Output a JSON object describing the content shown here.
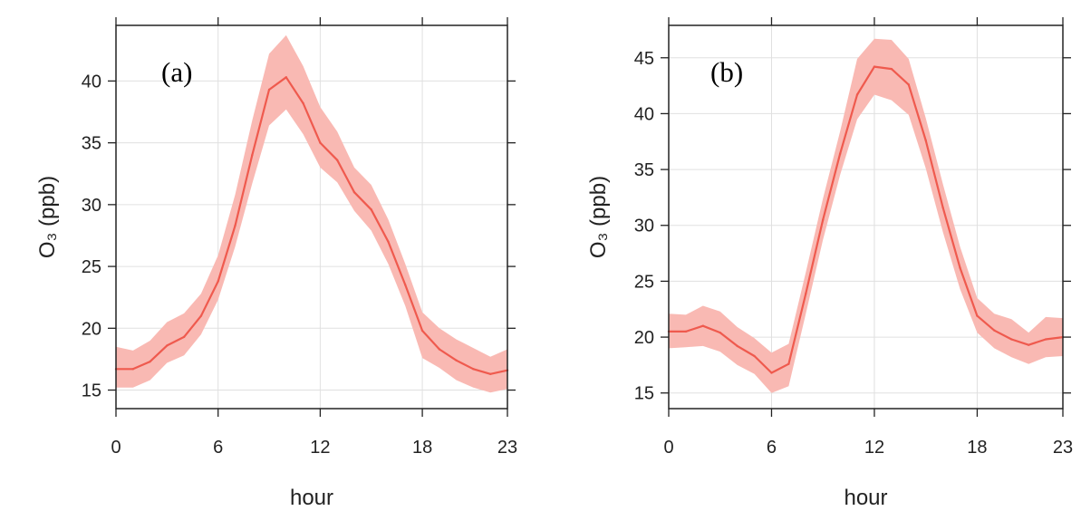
{
  "chart_data": [
    {
      "type": "line",
      "panel_label": "(a)",
      "xlabel": "hour",
      "ylabel": "O₃ (ppb)",
      "xlim": [
        0,
        23
      ],
      "ylim": [
        13.5,
        44.5
      ],
      "x_ticks": [
        0,
        6,
        12,
        18,
        23
      ],
      "y_ticks": [
        15,
        20,
        25,
        30,
        35,
        40
      ],
      "grid": true,
      "colors": {
        "line": "#ef5a4e",
        "band": "#f9b9b3",
        "grid": "#e0e0e0",
        "axis": "#222222"
      },
      "x": [
        0,
        1,
        2,
        3,
        4,
        5,
        6,
        7,
        8,
        9,
        10,
        11,
        12,
        13,
        14,
        15,
        16,
        17,
        18,
        19,
        20,
        21,
        22,
        23
      ],
      "series": [
        {
          "values": [
            16.7,
            16.7,
            17.3,
            18.6,
            19.3,
            21.0,
            23.8,
            28.3,
            34.0,
            39.3,
            40.3,
            38.2,
            35.0,
            33.6,
            31.0,
            29.6,
            27.0,
            23.5,
            19.8,
            18.3,
            17.4,
            16.7,
            16.3,
            16.6
          ],
          "lower": [
            15.2,
            15.2,
            15.8,
            17.2,
            17.8,
            19.5,
            22.3,
            26.6,
            31.7,
            36.4,
            37.7,
            35.7,
            33.0,
            31.8,
            29.5,
            27.9,
            25.2,
            21.8,
            17.6,
            16.8,
            15.8,
            15.2,
            14.8,
            15.1
          ],
          "upper": [
            18.5,
            18.2,
            19.0,
            20.5,
            21.2,
            22.8,
            25.9,
            30.8,
            36.8,
            42.2,
            43.7,
            41.2,
            37.9,
            35.9,
            33.0,
            31.6,
            28.8,
            25.2,
            21.3,
            20.0,
            19.1,
            18.4,
            17.7,
            18.3
          ]
        }
      ]
    },
    {
      "type": "line",
      "panel_label": "(b)",
      "xlabel": "hour",
      "ylabel": "O₃ (ppb)",
      "xlim": [
        0,
        23
      ],
      "ylim": [
        13.6,
        47.9
      ],
      "x_ticks": [
        0,
        6,
        12,
        18,
        23
      ],
      "y_ticks": [
        15,
        20,
        25,
        30,
        35,
        40,
        45
      ],
      "grid": true,
      "colors": {
        "line": "#ef5a4e",
        "band": "#f9b9b3",
        "grid": "#e0e0e0",
        "axis": "#222222"
      },
      "x": [
        0,
        1,
        2,
        3,
        4,
        5,
        6,
        7,
        8,
        9,
        10,
        11,
        12,
        13,
        14,
        15,
        16,
        17,
        18,
        19,
        20,
        21,
        22,
        23
      ],
      "series": [
        {
          "values": [
            20.5,
            20.5,
            21.0,
            20.4,
            19.2,
            18.3,
            16.8,
            17.6,
            23.9,
            30.5,
            36.4,
            41.7,
            44.2,
            44.0,
            42.6,
            37.6,
            31.6,
            26.2,
            21.9,
            20.6,
            19.8,
            19.3,
            19.8,
            20.0
          ],
          "lower": [
            19.0,
            19.1,
            19.2,
            18.7,
            17.5,
            16.7,
            15.0,
            15.6,
            22.1,
            28.7,
            34.5,
            39.5,
            41.7,
            41.2,
            39.9,
            35.1,
            29.4,
            24.3,
            20.4,
            19.0,
            18.2,
            17.6,
            18.2,
            18.3
          ],
          "upper": [
            22.1,
            22.0,
            22.8,
            22.3,
            20.9,
            19.9,
            18.6,
            19.4,
            25.8,
            32.4,
            38.4,
            44.9,
            46.7,
            46.6,
            44.9,
            39.6,
            33.7,
            28.1,
            23.5,
            22.1,
            21.6,
            20.4,
            21.8,
            21.7
          ]
        }
      ]
    }
  ]
}
